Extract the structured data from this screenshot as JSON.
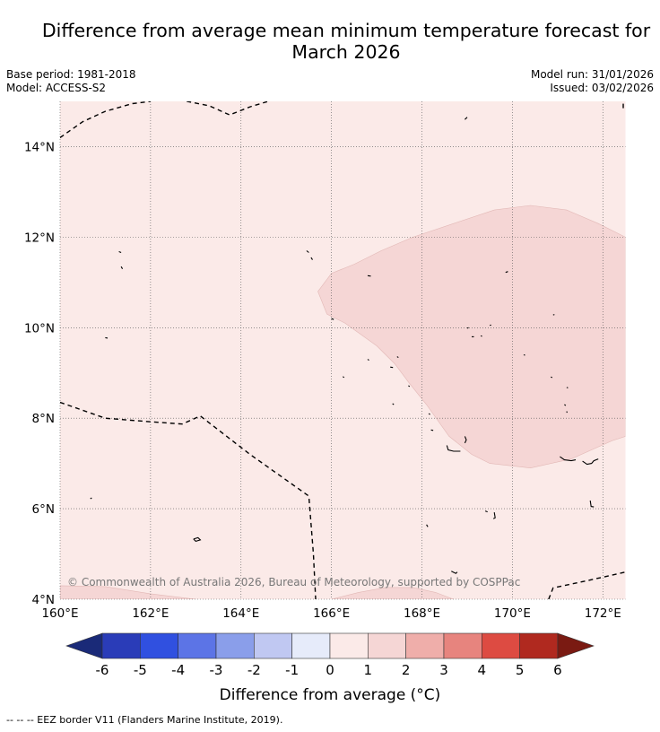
{
  "title": {
    "line1": "Difference from average mean minimum temperature forecast for",
    "line2": "March 2026"
  },
  "meta": {
    "base_period": "Base period: 1981-2018",
    "model": "Model: ACCESS-S2",
    "model_run": "Model run: 31/01/2026",
    "issued": "Issued: 03/02/2026"
  },
  "map": {
    "lon_range": [
      160,
      172.5
    ],
    "lat_range": [
      4,
      15
    ],
    "lon_ticks": [
      {
        "value": 160,
        "label": "160°E"
      },
      {
        "value": 162,
        "label": "162°E"
      },
      {
        "value": 164,
        "label": "164°E"
      },
      {
        "value": 166,
        "label": "166°E"
      },
      {
        "value": 168,
        "label": "168°E"
      },
      {
        "value": 170,
        "label": "170°E"
      },
      {
        "value": 172,
        "label": "172°E"
      }
    ],
    "lat_ticks": [
      {
        "value": 4,
        "label": "4°N"
      },
      {
        "value": 6,
        "label": "6°N"
      },
      {
        "value": 8,
        "label": "8°N"
      },
      {
        "value": 10,
        "label": "10°N"
      },
      {
        "value": 12,
        "label": "12°N"
      },
      {
        "value": 14,
        "label": "14°N"
      }
    ],
    "background_color": "#fbeae8",
    "regions": [
      {
        "name": "anomaly-1-to-2-region",
        "category": "1 to 2",
        "color": "#f5d6d5",
        "lonlat": [
          [
            165.7,
            10.8
          ],
          [
            165.9,
            10.3
          ],
          [
            166.3,
            10.1
          ],
          [
            167,
            9.6
          ],
          [
            167.4,
            9.2
          ],
          [
            167.7,
            8.8
          ],
          [
            168.1,
            8.3
          ],
          [
            168.6,
            7.6
          ],
          [
            169.1,
            7.2
          ],
          [
            169.5,
            7.0
          ],
          [
            170.4,
            6.9
          ],
          [
            171.3,
            7.1
          ],
          [
            172.2,
            7.5
          ],
          [
            172.5,
            7.6
          ],
          [
            172.5,
            12.0
          ],
          [
            171.9,
            12.3
          ],
          [
            171.2,
            12.6
          ],
          [
            170.4,
            12.7
          ],
          [
            169.6,
            12.6
          ],
          [
            168.7,
            12.3
          ],
          [
            167.8,
            12.0
          ],
          [
            167.1,
            11.7
          ],
          [
            166.5,
            11.4
          ],
          [
            166.0,
            11.2
          ]
        ]
      },
      {
        "name": "anomaly-1-to-2-strip-west",
        "category": "1 to 2",
        "color": "#f5d6d5",
        "lonlat": [
          [
            160,
            4.3
          ],
          [
            161,
            4.28
          ],
          [
            162,
            4.12
          ],
          [
            163,
            4.0
          ],
          [
            160,
            4.0
          ]
        ]
      },
      {
        "name": "anomaly-1-to-2-strip-center",
        "category": "1 to 2",
        "color": "#f5d6d5",
        "lonlat": [
          [
            166,
            4.0
          ],
          [
            166.6,
            4.15
          ],
          [
            167.2,
            4.26
          ],
          [
            167.8,
            4.26
          ],
          [
            168.3,
            4.15
          ],
          [
            168.7,
            4.0
          ]
        ]
      }
    ],
    "eez_borders": [
      {
        "name": "eez-border-north",
        "lonlat": [
          [
            160,
            14.2
          ],
          [
            160.5,
            14.55
          ],
          [
            161,
            14.78
          ],
          [
            161.6,
            14.95
          ],
          [
            162,
            15.0
          ]
        ]
      },
      {
        "name": "eez-border-north-2",
        "lonlat": [
          [
            162.8,
            15.0
          ],
          [
            163.3,
            14.9
          ],
          [
            163.75,
            14.7
          ],
          [
            164.2,
            14.88
          ],
          [
            164.6,
            15.0
          ]
        ]
      },
      {
        "name": "eez-border-west",
        "lonlat": [
          [
            160,
            8.35
          ],
          [
            161,
            8.0
          ],
          [
            162,
            7.92
          ],
          [
            162.7,
            7.87
          ],
          [
            163.1,
            8.05
          ],
          [
            164.2,
            7.2
          ],
          [
            165.5,
            6.28
          ],
          [
            165.6,
            5.0
          ],
          [
            165.65,
            4.0
          ]
        ]
      },
      {
        "name": "eez-border-southeast",
        "lonlat": [
          [
            170.8,
            4.0
          ],
          [
            170.9,
            4.25
          ],
          [
            171.7,
            4.42
          ],
          [
            172.5,
            4.6
          ]
        ]
      },
      {
        "name": "eez-border-northeast",
        "lonlat": [
          [
            172.45,
            14.85
          ],
          [
            172.45,
            15.0
          ]
        ]
      }
    ],
    "islands": [
      {
        "lonlat": [
          [
            161.0,
            9.78
          ],
          [
            161.05,
            9.77
          ]
        ]
      },
      {
        "lonlat": [
          [
            161.3,
            11.68
          ],
          [
            161.35,
            11.66
          ]
        ]
      },
      {
        "lonlat": [
          [
            161.35,
            11.35
          ],
          [
            161.38,
            11.3
          ]
        ]
      },
      {
        "lonlat": [
          [
            160.67,
            6.22
          ],
          [
            160.7,
            6.24
          ]
        ]
      },
      {
        "lonlat": [
          [
            162.95,
            5.33
          ],
          [
            163.05,
            5.36
          ],
          [
            163.1,
            5.31
          ],
          [
            163.0,
            5.28
          ],
          [
            162.95,
            5.33
          ]
        ]
      },
      {
        "lonlat": [
          [
            165.45,
            11.7
          ],
          [
            165.5,
            11.66
          ]
        ]
      },
      {
        "lonlat": [
          [
            165.55,
            11.55
          ],
          [
            165.58,
            11.5
          ]
        ]
      },
      {
        "lonlat": [
          [
            166.0,
            10.2
          ],
          [
            166.05,
            10.18
          ]
        ]
      },
      {
        "lonlat": [
          [
            166.8,
            11.15
          ],
          [
            166.87,
            11.14
          ]
        ]
      },
      {
        "lonlat": [
          [
            166.25,
            8.92
          ],
          [
            166.28,
            8.9
          ]
        ]
      },
      {
        "lonlat": [
          [
            166.8,
            9.3
          ],
          [
            166.83,
            9.28
          ]
        ]
      },
      {
        "lonlat": [
          [
            167.3,
            9.13
          ],
          [
            167.36,
            9.12
          ]
        ]
      },
      {
        "lonlat": [
          [
            167.45,
            9.36
          ],
          [
            167.48,
            9.34
          ]
        ]
      },
      {
        "lonlat": [
          [
            167.7,
            8.72
          ],
          [
            167.73,
            8.7
          ]
        ]
      },
      {
        "lonlat": [
          [
            167.35,
            8.32
          ],
          [
            167.38,
            8.3
          ]
        ]
      },
      {
        "lonlat": [
          [
            168.15,
            8.1
          ],
          [
            168.18,
            8.08
          ]
        ]
      },
      {
        "lonlat": [
          [
            168.2,
            7.74
          ],
          [
            168.25,
            7.73
          ]
        ]
      },
      {
        "lonlat": [
          [
            168.55,
            7.4
          ],
          [
            168.58,
            7.3
          ],
          [
            168.7,
            7.27
          ],
          [
            168.85,
            7.27
          ]
        ]
      },
      {
        "lonlat": [
          [
            168.95,
            7.6
          ],
          [
            168.98,
            7.52
          ],
          [
            168.95,
            7.45
          ]
        ]
      },
      {
        "lonlat": [
          [
            169.0,
            9.99
          ],
          [
            169.03,
            10.0
          ]
        ]
      },
      {
        "lonlat": [
          [
            169.1,
            9.8
          ],
          [
            169.15,
            9.8
          ]
        ]
      },
      {
        "lonlat": [
          [
            169.3,
            9.82
          ],
          [
            169.33,
            9.81
          ]
        ]
      },
      {
        "lonlat": [
          [
            169.5,
            10.05
          ],
          [
            169.53,
            10.06
          ]
        ]
      },
      {
        "lonlat": [
          [
            169.85,
            11.22
          ],
          [
            169.9,
            11.24
          ]
        ]
      },
      {
        "lonlat": [
          [
            170.25,
            9.4
          ],
          [
            170.28,
            9.39
          ]
        ]
      },
      {
        "lonlat": [
          [
            170.9,
            10.28
          ],
          [
            170.93,
            10.29
          ]
        ]
      },
      {
        "lonlat": [
          [
            170.85,
            8.91
          ],
          [
            170.88,
            8.9
          ]
        ]
      },
      {
        "lonlat": [
          [
            171.2,
            8.68
          ],
          [
            171.23,
            8.67
          ]
        ]
      },
      {
        "lonlat": [
          [
            171.15,
            8.3
          ],
          [
            171.18,
            8.28
          ]
        ]
      },
      {
        "lonlat": [
          [
            171.2,
            8.15
          ],
          [
            171.21,
            8.12
          ]
        ]
      },
      {
        "lonlat": [
          [
            171.05,
            7.15
          ],
          [
            171.15,
            7.08
          ],
          [
            171.3,
            7.06
          ],
          [
            171.4,
            7.08
          ]
        ]
      },
      {
        "lonlat": [
          [
            171.55,
            7.05
          ],
          [
            171.65,
            6.98
          ],
          [
            171.75,
            7.0
          ],
          [
            171.8,
            7.06
          ],
          [
            171.9,
            7.1
          ]
        ]
      },
      {
        "lonlat": [
          [
            171.72,
            6.18
          ],
          [
            171.74,
            6.05
          ],
          [
            171.8,
            6.04
          ]
        ]
      },
      {
        "lonlat": [
          [
            169.4,
            5.95
          ],
          [
            169.45,
            5.93
          ]
        ]
      },
      {
        "lonlat": [
          [
            169.6,
            5.92
          ],
          [
            169.62,
            5.8
          ],
          [
            169.58,
            5.78
          ]
        ]
      },
      {
        "lonlat": [
          [
            168.1,
            5.65
          ],
          [
            168.13,
            5.6
          ]
        ]
      },
      {
        "lonlat": [
          [
            168.65,
            4.62
          ],
          [
            168.75,
            4.57
          ],
          [
            168.78,
            4.6
          ]
        ]
      },
      {
        "lonlat": [
          [
            168.95,
            14.6
          ],
          [
            169.0,
            14.65
          ]
        ]
      }
    ],
    "copyright": "© Commonwealth of Australia 2026, Bureau of Meteorology, supported by COSPPac"
  },
  "colorbar": {
    "ticks": [
      "-6",
      "-5",
      "-4",
      "-3",
      "-2",
      "-1",
      "0",
      "1",
      "2",
      "3",
      "4",
      "5",
      "6"
    ],
    "colors": [
      "#1a2a78",
      "#2a3cb8",
      "#3050e0",
      "#5c74e6",
      "#8a9eea",
      "#c0c8f2",
      "#e6ebfa",
      "#fbeae8",
      "#f5d6d5",
      "#efaeaa",
      "#e7847e",
      "#dd4b42",
      "#b0291f",
      "#7a1a12"
    ],
    "label": "Difference from average (°C)"
  },
  "footnote": "--  --  -- EEZ border V11 (Flanders Marine Institute, 2019)."
}
